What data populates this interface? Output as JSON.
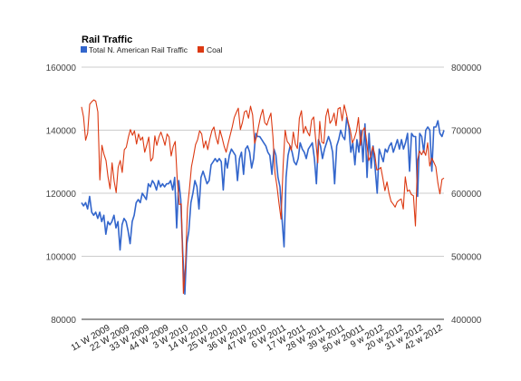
{
  "chart_data": {
    "type": "line",
    "title": "Rail Traffic",
    "legend_position": "top-left",
    "grid": true,
    "y_left": {
      "range": [
        80000,
        160000
      ],
      "ticks": [
        "80000",
        "100000",
        "120000",
        "140000",
        "160000"
      ]
    },
    "y_right": {
      "range": [
        400000,
        800000
      ],
      "ticks": [
        "400000",
        "500000",
        "600000",
        "700000",
        "800000"
      ]
    },
    "x_ticks": [
      "11 W 2009",
      "22 W 2009",
      "33 W 2009",
      "44 W 2009",
      "3 W 2010",
      "14 W 2010",
      "25 W 2010",
      "36 W 2010",
      "47 W 2010",
      "6 W 2011",
      "17 W 2011",
      "28 W 2011",
      "39 w 2011",
      "50 w 20011",
      "9 w 2012",
      "20 w 2012",
      "31 w 2012",
      "42 w 2012"
    ],
    "series": [
      {
        "name": "Total N. American Rail Traffic",
        "color": "#3366cc",
        "axis": "left",
        "values": [
          117000,
          116000,
          117000,
          115000,
          119000,
          114000,
          113000,
          114000,
          112000,
          114000,
          111000,
          113000,
          107000,
          111000,
          110000,
          111000,
          113000,
          109000,
          111000,
          102000,
          110000,
          112000,
          111000,
          108000,
          104000,
          111000,
          113000,
          117000,
          118000,
          117000,
          120000,
          119000,
          118000,
          123000,
          122000,
          124000,
          123000,
          121000,
          124000,
          122000,
          123000,
          122000,
          123000,
          123000,
          124000,
          121000,
          125000,
          109000,
          124000,
          118000,
          101000,
          88000,
          104000,
          108000,
          117000,
          120000,
          124000,
          122000,
          115000,
          125000,
          127000,
          125000,
          123000,
          124000,
          129000,
          130000,
          131000,
          130000,
          131000,
          130000,
          121000,
          131000,
          128000,
          132000,
          134000,
          133000,
          132000,
          124000,
          131000,
          133000,
          126000,
          134000,
          135000,
          133000,
          128000,
          131000,
          139000,
          138000,
          138000,
          137000,
          136000,
          135000,
          133000,
          132000,
          126000,
          134000,
          132000,
          125000,
          122000,
          112000,
          103000,
          125000,
          132000,
          135000,
          133000,
          130000,
          129000,
          131000,
          136000,
          134000,
          133000,
          131000,
          134000,
          135000,
          136000,
          131000,
          123000,
          137000,
          135000,
          131000,
          134000,
          136000,
          138000,
          136000,
          133000,
          123000,
          135000,
          137000,
          140000,
          138000,
          137000,
          144000,
          141000,
          133000,
          136000,
          129000,
          137000,
          133000,
          140000,
          130000,
          142000,
          125000,
          139000,
          128000,
          135000,
          128000,
          120000,
          134000,
          132000,
          130000,
          134000,
          133000,
          135000,
          136000,
          133000,
          135000,
          137000,
          134000,
          137000,
          134000,
          136000,
          139000,
          127000,
          139000,
          138000,
          138000,
          119000,
          139000,
          138000,
          133000,
          140000,
          141000,
          140000,
          127000,
          141000,
          141000,
          143000,
          139000,
          138000,
          140000
        ]
      },
      {
        "name": "Coal",
        "color": "#dc3912",
        "axis": "right",
        "values": [
          737000,
          721000,
          684000,
          695000,
          741000,
          745000,
          748000,
          746000,
          729000,
          621000,
          676000,
          662000,
          652000,
          626000,
          607000,
          648000,
          619000,
          601000,
          641000,
          652000,
          633000,
          669000,
          673000,
          689000,
          701000,
          692000,
          699000,
          678000,
          694000,
          684000,
          689000,
          665000,
          676000,
          689000,
          651000,
          656000,
          691000,
          676000,
          689000,
          697000,
          687000,
          676000,
          694000,
          689000,
          659000,
          674000,
          682000,
          622000,
          582000,
          583000,
          441000,
          482000,
          576000,
          607000,
          642000,
          659000,
          677000,
          685000,
          699000,
          694000,
          672000,
          683000,
          669000,
          686000,
          699000,
          705000,
          689000,
          678000,
          700000,
          688000,
          675000,
          665000,
          679000,
          692000,
          705000,
          720000,
          728000,
          735000,
          701000,
          712000,
          729000,
          731000,
          719000,
          738000,
          724000,
          679000,
          690000,
          707000,
          723000,
          733000,
          712000,
          708000,
          718000,
          727000,
          690000,
          632000,
          611000,
          583000,
          559000,
          644000,
          700000,
          682000,
          678000,
          668000,
          697000,
          678000,
          671000,
          719000,
          731000,
          695000,
          706000,
          697000,
          691000,
          716000,
          721000,
          685000,
          648000,
          714000,
          681000,
          679000,
          722000,
          734000,
          711000,
          716000,
          727000,
          707000,
          734000,
          736000,
          715000,
          740000,
          727000,
          712000,
          700000,
          680000,
          687000,
          698000,
          720000,
          676000,
          699000,
          704000,
          683000,
          652000,
          659000,
          674000,
          662000,
          637000,
          638000,
          641000,
          623000,
          604000,
          618000,
          600000,
          587000,
          583000,
          578000,
          586000,
          589000,
          591000,
          575000,
          626000,
          603000,
          605000,
          598000,
          596000,
          548000,
          652000,
          667000,
          661000,
          668000,
          660000,
          680000,
          643000,
          656000,
          649000,
          642000,
          616000,
          599000,
          622000,
          624000
        ]
      }
    ]
  }
}
